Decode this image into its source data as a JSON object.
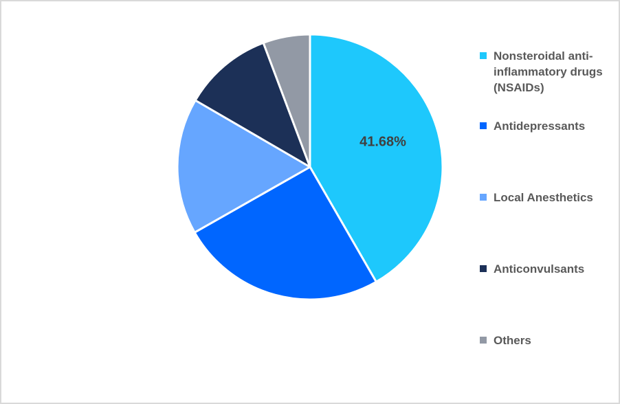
{
  "chart_data": {
    "type": "pie",
    "title": "",
    "categories": [
      "Nonsteroidal anti-inflammatory drugs (NSAIDs)",
      "Antidepressants",
      "Local Anesthetics",
      "Anticonvulsants",
      "Others"
    ],
    "values": [
      41.68,
      25.1,
      16.6,
      10.9,
      5.72
    ],
    "colors": [
      "#1ec8fc",
      "#0066ff",
      "#66a6ff",
      "#1c3057",
      "#9299a5"
    ],
    "data_labels": [
      "41.68%",
      "",
      "",
      "",
      ""
    ],
    "start_angle_deg": 0,
    "direction": "clockwise",
    "legend_position": "right"
  },
  "legend": {
    "items": [
      {
        "label": "Nonsteroidal anti-inflammatory drugs (NSAIDs)",
        "color": "#1ec8fc"
      },
      {
        "label": "Antidepressants",
        "color": "#0066ff"
      },
      {
        "label": "Local Anesthetics",
        "color": "#66a6ff"
      },
      {
        "label": "Anticonvulsants",
        "color": "#1c3057"
      },
      {
        "label": "Others",
        "color": "#9299a5"
      }
    ]
  },
  "labels": {
    "nsaids_pct": "41.68%"
  }
}
